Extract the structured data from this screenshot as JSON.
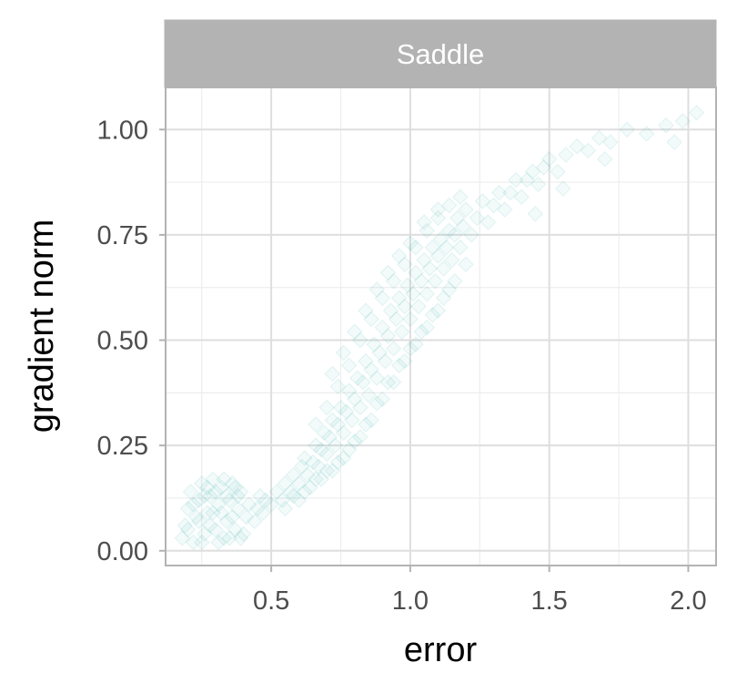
{
  "chart_data": {
    "type": "scatter",
    "facet_label": "Saddle",
    "xlabel": "error",
    "ylabel": "gradient norm",
    "xlim": [
      0.12,
      2.1
    ],
    "ylim": [
      -0.035,
      1.1
    ],
    "x_ticks": [
      0.5,
      1.0,
      1.5,
      2.0
    ],
    "x_tick_labels": [
      "0.5",
      "1.0",
      "1.5",
      "2.0"
    ],
    "y_ticks": [
      0.0,
      0.25,
      0.5,
      0.75,
      1.0
    ],
    "y_tick_labels": [
      "0.00",
      "0.25",
      "0.50",
      "0.75",
      "1.00"
    ],
    "grid": true,
    "legend": "none",
    "marker": "diamond",
    "point_color": "#14A3A0",
    "point_opacity": 0.05,
    "points": [
      [
        0.18,
        0.03
      ],
      [
        0.19,
        0.06
      ],
      [
        0.2,
        0.1
      ],
      [
        0.21,
        0.14
      ],
      [
        0.22,
        0.02
      ],
      [
        0.23,
        0.08
      ],
      [
        0.24,
        0.12
      ],
      [
        0.25,
        0.16
      ],
      [
        0.26,
        0.04
      ],
      [
        0.27,
        0.09
      ],
      [
        0.28,
        0.13
      ],
      [
        0.29,
        0.17
      ],
      [
        0.3,
        0.05
      ],
      [
        0.31,
        0.11
      ],
      [
        0.32,
        0.15
      ],
      [
        0.33,
        0.03
      ],
      [
        0.34,
        0.07
      ],
      [
        0.35,
        0.12
      ],
      [
        0.36,
        0.16
      ],
      [
        0.37,
        0.05
      ],
      [
        0.38,
        0.1
      ],
      [
        0.39,
        0.14
      ],
      [
        0.4,
        0.04
      ],
      [
        0.41,
        0.08
      ],
      [
        0.42,
        0.11
      ],
      [
        0.44,
        0.07
      ],
      [
        0.45,
        0.1
      ],
      [
        0.46,
        0.13
      ],
      [
        0.47,
        0.09
      ],
      [
        0.48,
        0.12
      ],
      [
        0.2,
        0.05
      ],
      [
        0.22,
        0.11
      ],
      [
        0.24,
        0.07
      ],
      [
        0.26,
        0.13
      ],
      [
        0.28,
        0.06
      ],
      [
        0.3,
        0.14
      ],
      [
        0.32,
        0.09
      ],
      [
        0.34,
        0.13
      ],
      [
        0.36,
        0.08
      ],
      [
        0.38,
        0.13
      ],
      [
        0.25,
        0.02
      ],
      [
        0.27,
        0.15
      ],
      [
        0.29,
        0.09
      ],
      [
        0.31,
        0.02
      ],
      [
        0.33,
        0.17
      ],
      [
        0.35,
        0.03
      ],
      [
        0.37,
        0.15
      ],
      [
        0.39,
        0.03
      ],
      [
        0.5,
        0.11
      ],
      [
        0.52,
        0.14
      ],
      [
        0.54,
        0.12
      ],
      [
        0.55,
        0.16
      ],
      [
        0.57,
        0.14
      ],
      [
        0.58,
        0.18
      ],
      [
        0.6,
        0.16
      ],
      [
        0.61,
        0.2
      ],
      [
        0.62,
        0.22
      ],
      [
        0.63,
        0.18
      ],
      [
        0.65,
        0.21
      ],
      [
        0.66,
        0.25
      ],
      [
        0.67,
        0.2
      ],
      [
        0.68,
        0.24
      ],
      [
        0.69,
        0.28
      ],
      [
        0.7,
        0.23
      ],
      [
        0.71,
        0.27
      ],
      [
        0.72,
        0.31
      ],
      [
        0.73,
        0.25
      ],
      [
        0.74,
        0.3
      ],
      [
        0.75,
        0.34
      ],
      [
        0.76,
        0.28
      ],
      [
        0.77,
        0.33
      ],
      [
        0.78,
        0.38
      ],
      [
        0.79,
        0.31
      ],
      [
        0.8,
        0.36
      ],
      [
        0.81,
        0.41
      ],
      [
        0.82,
        0.34
      ],
      [
        0.83,
        0.4
      ],
      [
        0.84,
        0.45
      ],
      [
        0.85,
        0.37
      ],
      [
        0.86,
        0.43
      ],
      [
        0.87,
        0.49
      ],
      [
        0.88,
        0.41
      ],
      [
        0.89,
        0.47
      ],
      [
        0.9,
        0.53
      ],
      [
        0.91,
        0.45
      ],
      [
        0.92,
        0.51
      ],
      [
        0.93,
        0.57
      ],
      [
        0.94,
        0.48
      ],
      [
        0.95,
        0.55
      ],
      [
        0.96,
        0.6
      ],
      [
        0.97,
        0.52
      ],
      [
        0.98,
        0.58
      ],
      [
        0.99,
        0.63
      ],
      [
        1.0,
        0.55
      ],
      [
        1.01,
        0.61
      ],
      [
        1.02,
        0.66
      ],
      [
        1.03,
        0.58
      ],
      [
        1.04,
        0.64
      ],
      [
        1.05,
        0.69
      ],
      [
        1.06,
        0.61
      ],
      [
        1.07,
        0.67
      ],
      [
        1.08,
        0.72
      ],
      [
        1.09,
        0.64
      ],
      [
        1.1,
        0.7
      ],
      [
        1.11,
        0.74
      ],
      [
        1.12,
        0.67
      ],
      [
        1.13,
        0.72
      ],
      [
        1.14,
        0.76
      ],
      [
        1.15,
        0.69
      ],
      [
        1.16,
        0.75
      ],
      [
        1.17,
        0.79
      ],
      [
        1.18,
        0.72
      ],
      [
        1.19,
        0.77
      ],
      [
        1.2,
        0.81
      ],
      [
        1.22,
        0.75
      ],
      [
        1.24,
        0.79
      ],
      [
        1.26,
        0.83
      ],
      [
        1.28,
        0.78
      ],
      [
        1.3,
        0.82
      ],
      [
        1.32,
        0.85
      ],
      [
        1.34,
        0.81
      ],
      [
        1.36,
        0.85
      ],
      [
        1.38,
        0.88
      ],
      [
        1.4,
        0.84
      ],
      [
        1.42,
        0.88
      ],
      [
        1.44,
        0.9
      ],
      [
        1.46,
        0.87
      ],
      [
        1.48,
        0.91
      ],
      [
        1.5,
        0.93
      ],
      [
        1.53,
        0.9
      ],
      [
        1.56,
        0.94
      ],
      [
        1.6,
        0.96
      ],
      [
        1.64,
        0.95
      ],
      [
        1.68,
        0.98
      ],
      [
        1.72,
        0.97
      ],
      [
        1.78,
        1.0
      ],
      [
        1.85,
        0.99
      ],
      [
        1.92,
        1.01
      ],
      [
        1.98,
        1.02
      ],
      [
        2.03,
        1.04
      ],
      [
        1.95,
        0.97
      ],
      [
        1.7,
        0.93
      ],
      [
        1.55,
        0.86
      ],
      [
        1.45,
        0.8
      ],
      [
        0.6,
        0.12
      ],
      [
        0.64,
        0.15
      ],
      [
        0.68,
        0.17
      ],
      [
        0.72,
        0.19
      ],
      [
        0.76,
        0.22
      ],
      [
        0.8,
        0.26
      ],
      [
        0.84,
        0.3
      ],
      [
        0.88,
        0.35
      ],
      [
        0.92,
        0.4
      ],
      [
        0.96,
        0.44
      ],
      [
        1.0,
        0.48
      ],
      [
        1.04,
        0.52
      ],
      [
        1.08,
        0.56
      ],
      [
        1.12,
        0.6
      ],
      [
        1.16,
        0.64
      ],
      [
        1.2,
        0.68
      ],
      [
        0.66,
        0.3
      ],
      [
        0.7,
        0.34
      ],
      [
        0.74,
        0.39
      ],
      [
        0.78,
        0.44
      ],
      [
        0.82,
        0.5
      ],
      [
        0.86,
        0.55
      ],
      [
        0.9,
        0.6
      ],
      [
        0.94,
        0.64
      ],
      [
        0.98,
        0.68
      ],
      [
        1.02,
        0.72
      ],
      [
        1.06,
        0.76
      ],
      [
        1.1,
        0.79
      ],
      [
        1.14,
        0.82
      ],
      [
        1.18,
        0.84
      ],
      [
        0.72,
        0.42
      ],
      [
        0.76,
        0.47
      ],
      [
        0.8,
        0.52
      ],
      [
        0.84,
        0.57
      ],
      [
        0.88,
        0.62
      ],
      [
        0.92,
        0.66
      ],
      [
        0.96,
        0.7
      ],
      [
        1.0,
        0.73
      ],
      [
        1.05,
        0.78
      ],
      [
        1.1,
        0.81
      ],
      [
        0.55,
        0.1
      ],
      [
        0.58,
        0.13
      ],
      [
        0.62,
        0.14
      ],
      [
        0.66,
        0.17
      ],
      [
        0.7,
        0.19
      ],
      [
        0.74,
        0.21
      ],
      [
        0.78,
        0.24
      ],
      [
        0.82,
        0.27
      ],
      [
        0.86,
        0.31
      ],
      [
        0.9,
        0.36
      ],
      [
        0.94,
        0.4
      ],
      [
        0.98,
        0.45
      ],
      [
        1.02,
        0.49
      ],
      [
        1.06,
        0.53
      ],
      [
        1.1,
        0.57
      ],
      [
        1.14,
        0.62
      ]
    ]
  }
}
